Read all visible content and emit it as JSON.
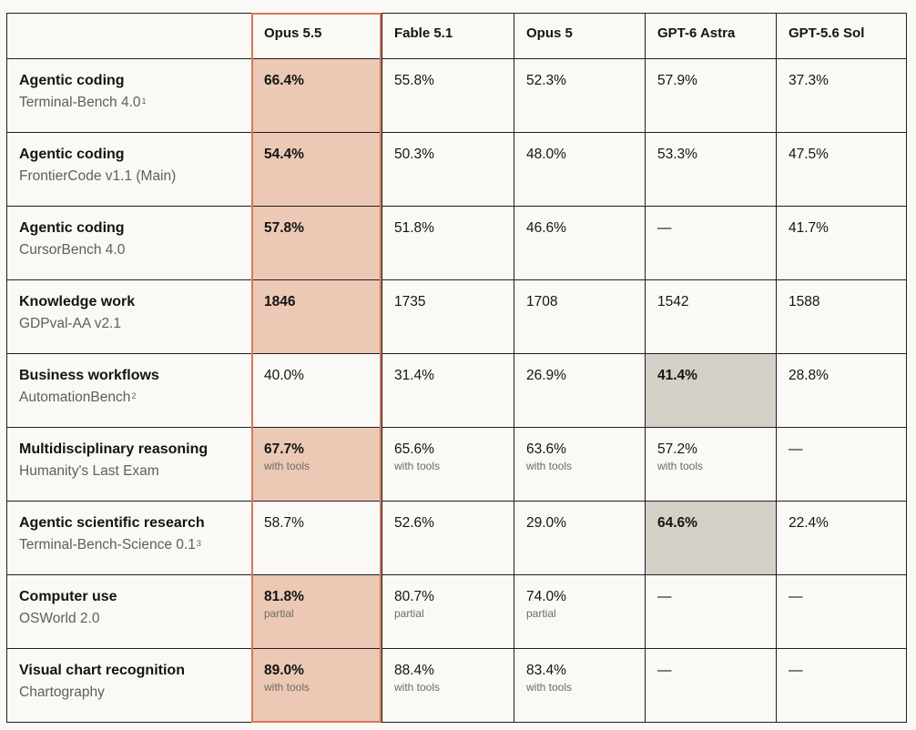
{
  "colors": {
    "accent_outline": "#d97757",
    "highlight_opus": "#ecc9b5",
    "highlight_other": "#d4d0c8"
  },
  "chart_data": {
    "type": "table",
    "columns": [
      "",
      "Opus 5.5",
      "Fable 5.1",
      "Opus 5",
      "GPT-6 Astra",
      "GPT-5.6 Sol"
    ],
    "highlighted_column": "Opus 5.5",
    "rows": [
      {
        "category": "Agentic coding",
        "benchmark": "Terminal-Bench 4.0",
        "footnote": "1",
        "values": [
          "66.4%",
          "55.8%",
          "52.3%",
          "57.9%",
          "37.3%"
        ],
        "best": 0,
        "notes": [
          "",
          "",
          "",
          "",
          ""
        ]
      },
      {
        "category": "Agentic coding",
        "benchmark": "FrontierCode v1.1 (Main)",
        "footnote": "",
        "values": [
          "54.4%",
          "50.3%",
          "48.0%",
          "53.3%",
          "47.5%"
        ],
        "best": 0,
        "notes": [
          "",
          "",
          "",
          "",
          ""
        ]
      },
      {
        "category": "Agentic coding",
        "benchmark": "CursorBench 4.0",
        "footnote": "",
        "values": [
          "57.8%",
          "51.8%",
          "46.6%",
          "—",
          "41.7%"
        ],
        "best": 0,
        "notes": [
          "",
          "",
          "",
          "",
          ""
        ]
      },
      {
        "category": "Knowledge work",
        "benchmark": "GDPval-AA v2.1",
        "footnote": "",
        "values": [
          "1846",
          "1735",
          "1708",
          "1542",
          "1588"
        ],
        "best": 0,
        "notes": [
          "",
          "",
          "",
          "",
          ""
        ]
      },
      {
        "category": "Business workflows",
        "benchmark": "AutomationBench",
        "footnote": "2",
        "values": [
          "40.0%",
          "31.4%",
          "26.9%",
          "41.4%",
          "28.8%"
        ],
        "best": 3,
        "notes": [
          "",
          "",
          "",
          "",
          ""
        ]
      },
      {
        "category": "Multidisciplinary reasoning",
        "benchmark": "Humanity's Last Exam",
        "footnote": "",
        "values": [
          "67.7%",
          "65.6%",
          "63.6%",
          "57.2%",
          "—"
        ],
        "best": 0,
        "notes": [
          "with tools",
          "with tools",
          "with tools",
          "with tools",
          ""
        ]
      },
      {
        "category": "Agentic scientific research",
        "benchmark": "Terminal-Bench-Science 0.1",
        "footnote": "3",
        "values": [
          "58.7%",
          "52.6%",
          "29.0%",
          "64.6%",
          "22.4%"
        ],
        "best": 3,
        "notes": [
          "",
          "",
          "",
          "",
          ""
        ]
      },
      {
        "category": "Computer use",
        "benchmark": "OSWorld 2.0",
        "footnote": "",
        "values": [
          "81.8%",
          "80.7%",
          "74.0%",
          "—",
          "—"
        ],
        "best": 0,
        "notes": [
          "partial",
          "partial",
          "partial",
          "",
          ""
        ]
      },
      {
        "category": "Visual chart recognition",
        "benchmark": "Chartography",
        "footnote": "",
        "values": [
          "89.0%",
          "88.4%",
          "83.4%",
          "—",
          "—"
        ],
        "best": 0,
        "notes": [
          "with tools",
          "with tools",
          "with tools",
          "",
          ""
        ]
      }
    ]
  }
}
